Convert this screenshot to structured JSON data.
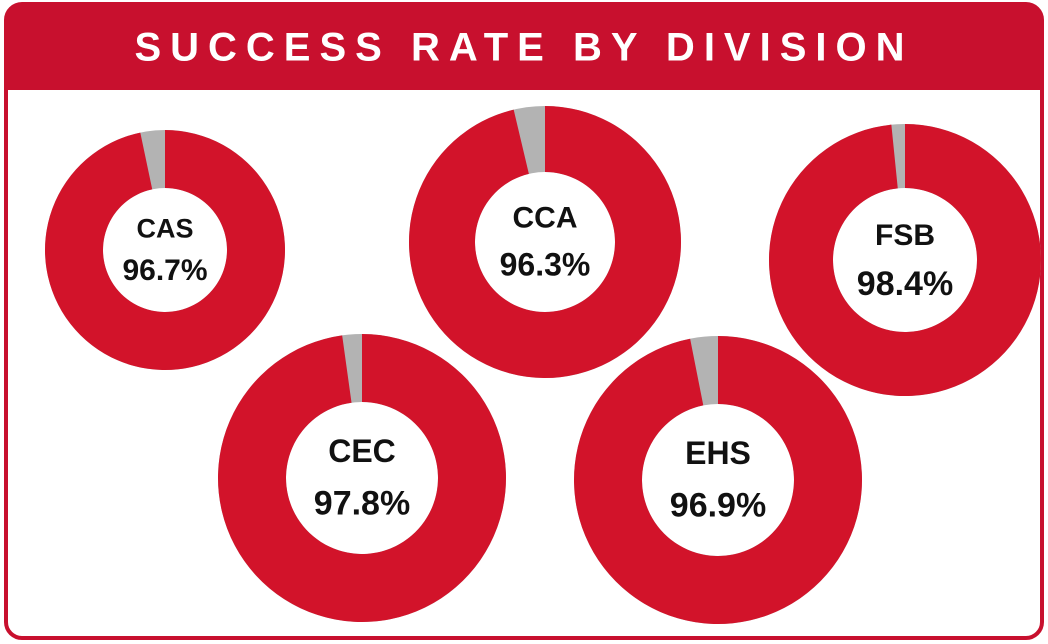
{
  "chart_data": {
    "type": "donut",
    "title": "SUCCESS RATE BY DIVISION",
    "categories": [
      "CAS",
      "CCA",
      "FSB",
      "CEC",
      "EHS"
    ],
    "values": [
      96.7,
      96.3,
      98.4,
      97.8,
      96.9
    ],
    "value_labels": [
      "96.7%",
      "96.3%",
      "98.4%",
      "97.8%",
      "96.9%"
    ],
    "color": "#d2132a",
    "remainder_color": "#b3b3b3"
  }
}
